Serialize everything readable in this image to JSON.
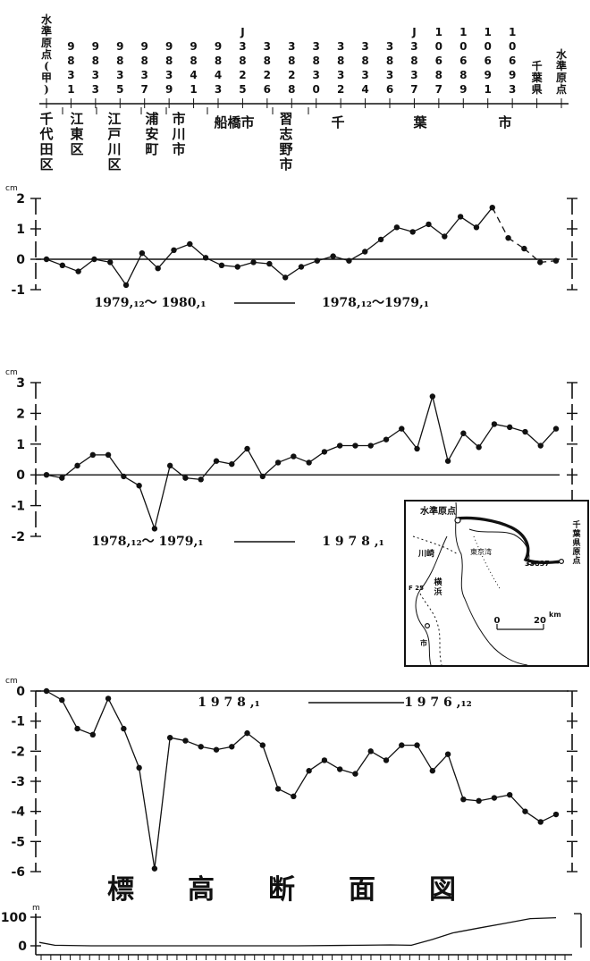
{
  "header": {
    "stations": [
      {
        "label": "水準原点(甲)",
        "kind": "named"
      },
      {
        "label": "9831",
        "kind": "num"
      },
      {
        "label": "9833",
        "kind": "num"
      },
      {
        "label": "9835",
        "kind": "num"
      },
      {
        "label": "9837",
        "kind": "num"
      },
      {
        "label": "9839",
        "kind": "num"
      },
      {
        "label": "9841",
        "kind": "num"
      },
      {
        "label": "9843",
        "kind": "num"
      },
      {
        "label": "J3825",
        "kind": "num"
      },
      {
        "label": "3826",
        "kind": "num"
      },
      {
        "label": "3828",
        "kind": "num"
      },
      {
        "label": "3830",
        "kind": "num"
      },
      {
        "label": "3832",
        "kind": "num"
      },
      {
        "label": "3834",
        "kind": "num"
      },
      {
        "label": "3836",
        "kind": "num"
      },
      {
        "label": "J3837",
        "kind": "num"
      },
      {
        "label": "10687",
        "kind": "num"
      },
      {
        "label": "10689",
        "kind": "num"
      },
      {
        "label": "10691",
        "kind": "num"
      },
      {
        "label": "10693",
        "kind": "num"
      },
      {
        "label": "千葉県",
        "kind": "named"
      },
      {
        "label": "水準原点",
        "kind": "named"
      }
    ],
    "districts": [
      {
        "label": "千代田区"
      },
      {
        "label": "江東区"
      },
      {
        "label": "江戸川区"
      },
      {
        "label": "浦安町"
      },
      {
        "label": "市川市"
      },
      {
        "label": "船橋市"
      },
      {
        "label": "習志野市"
      },
      {
        "label": "千"
      },
      {
        "label": "葉"
      },
      {
        "label": "市"
      }
    ]
  },
  "chart_data": [
    {
      "type": "line",
      "y_unit": "cm",
      "ylim": [
        -1,
        2
      ],
      "yticks": [
        "2",
        "1",
        "0",
        "-1"
      ],
      "legend": {
        "left": "1979,₁₂～ 1980,₁",
        "right": "1978,₁₂～1979,₁"
      },
      "series": [
        {
          "values": [
            0,
            -0.2,
            -0.4,
            0,
            -0.1,
            -0.85,
            0.2,
            -0.3,
            0.3,
            0.5,
            0.05,
            -0.2,
            -0.25,
            -0.1,
            -0.15,
            -0.6,
            -0.25,
            -0.05,
            0.1,
            -0.05,
            0.25,
            0.65,
            1.05,
            0.9,
            1.15,
            0.75,
            1.4,
            1.05,
            1.7,
            0.7,
            0.35,
            -0.1,
            -0.05
          ],
          "dashed_segments": [
            [
              28,
              29
            ],
            [
              29,
              30
            ],
            [
              30,
              31
            ],
            [
              31,
              32
            ]
          ]
        }
      ]
    },
    {
      "type": "line",
      "y_unit": "cm",
      "ylim": [
        -2,
        3
      ],
      "yticks": [
        "3",
        "2",
        "1",
        "0",
        "-1",
        "-2"
      ],
      "legend": {
        "left": "1978,₁₂～ 1979,₁",
        "right": "1 9 7 8 ,₁"
      },
      "series": [
        {
          "values": [
            0,
            -0.1,
            0.3,
            0.65,
            0.65,
            -0.05,
            -0.35,
            -1.75,
            0.3,
            -0.1,
            -0.15,
            0.45,
            0.35,
            0.85,
            -0.05,
            0.4,
            0.6,
            0.4,
            0.75,
            0.95,
            0.95,
            0.95,
            1.15,
            1.5,
            0.85,
            2.55,
            0.45,
            1.35,
            0.9,
            1.65,
            1.55,
            1.4,
            0.95,
            1.5
          ]
        }
      ]
    },
    {
      "type": "line",
      "y_unit": "cm",
      "ylim": [
        -6,
        0
      ],
      "yticks": [
        "0",
        "-1",
        "-2",
        "-3",
        "-4",
        "-5",
        "-6"
      ],
      "legend": {
        "left": "1 9 7 8 ,₁",
        "right": "1 9 7 6 ,₁₂"
      },
      "series": [
        {
          "values": [
            0,
            -0.3,
            -1.25,
            -1.45,
            -0.25,
            -1.25,
            -2.55,
            -5.9,
            -1.55,
            -1.65,
            -1.85,
            -1.95,
            -1.85,
            -1.4,
            -1.8,
            -3.25,
            -3.5,
            -2.65,
            -2.3,
            -2.6,
            -2.75,
            -2,
            -2.3,
            -1.8,
            -1.8,
            -2.65,
            -2.1,
            -3.6,
            -3.65,
            -3.55,
            -3.45,
            -4,
            -4.35,
            -4.1
          ]
        }
      ]
    },
    {
      "type": "area",
      "title": "標　　高　　断　　面　　図",
      "y_unit": "m",
      "ylim": [
        0,
        100
      ],
      "yticks": [
        "100",
        "0"
      ],
      "series": [
        {
          "x": [
            0,
            0.03,
            0.1,
            0.3,
            0.5,
            0.62,
            0.68,
            0.72,
            0.76,
            0.8,
            0.85,
            0.9,
            0.95,
            1.0
          ],
          "values": [
            12,
            2,
            0,
            0,
            0,
            2,
            3,
            2,
            22,
            45,
            62,
            78,
            95,
            98
          ]
        }
      ]
    }
  ],
  "inset_map": {
    "labels": {
      "origin": "水準原点",
      "kawasaki": "川崎",
      "bay": "東京湾",
      "point": "33837",
      "chiba_origin": "千葉県原点",
      "yokohama": "横浜",
      "f25": "F 25",
      "south": "市"
    },
    "scale": {
      "start": "0",
      "end": "20",
      "unit": "km"
    }
  }
}
